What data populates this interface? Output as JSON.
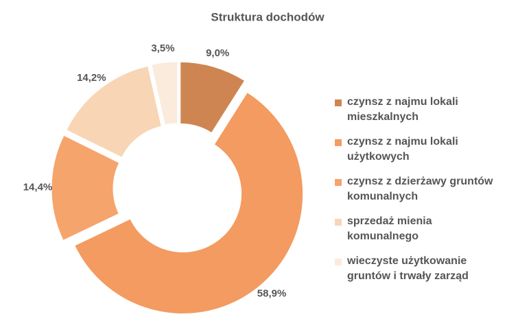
{
  "chart_data": {
    "type": "donut",
    "title": "Struktura dochodów",
    "categories": [
      "czynsz z najmu lokali mieszkalnych",
      "czynsz z najmu lokali użytkowych",
      "czynsz z dzierżawy gruntów komunalnych",
      "sprzedaż mienia komunalnego",
      "wieczyste użytkowanie gruntów i trwały zarząd"
    ],
    "values": [
      9.0,
      58.9,
      14.4,
      14.2,
      3.5
    ],
    "value_labels": [
      "9,0%",
      "58,9%",
      "14,4%",
      "14,2%",
      "3,5%"
    ],
    "colors": [
      "#cf8552",
      "#f39b60",
      "#f5a46c",
      "#f8d5b4",
      "#fbebdc"
    ]
  }
}
